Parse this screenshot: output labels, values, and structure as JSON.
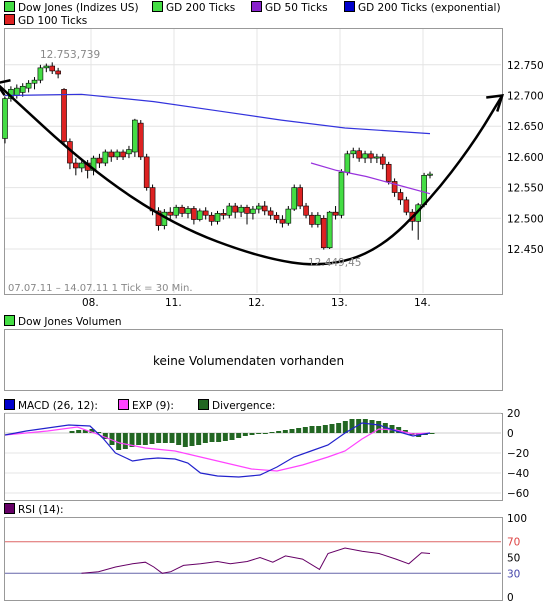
{
  "legend_top": [
    {
      "label": "Dow Jones (Indizes US)",
      "color": "#44dd44"
    },
    {
      "label": "GD 200 Ticks",
      "color": "#44dd44"
    },
    {
      "label": "GD 50 Ticks",
      "color": "#8822cc"
    },
    {
      "label": "GD 200 Ticks (exponential)",
      "color": "#0000cc"
    },
    {
      "label": "GD 100 Ticks",
      "color": "#dd2222"
    }
  ],
  "chart_data": [
    {
      "type": "candlestick",
      "ylim": [
        12400,
        12800
      ],
      "y_ticks": [
        "12.750",
        "12.700",
        "12.650",
        "12.600",
        "12.550",
        "12.500",
        "12.450"
      ],
      "x_ticks": [
        "08.",
        "11.",
        "12.",
        "13.",
        "14."
      ],
      "date_range": "07.07.11 – 14.07.11   1 Tick = 30 Min.",
      "max_label": "12.753,739",
      "min_label": "12.449,45",
      "candles": [
        [
          12630,
          12695,
          12622,
          12698
        ],
        [
          12695,
          12710,
          12690,
          12715
        ],
        [
          12700,
          12712,
          12695,
          12718
        ],
        [
          12705,
          12715,
          12698,
          12720
        ],
        [
          12712,
          12720,
          12705,
          12725
        ],
        [
          12720,
          12725,
          12710,
          12730
        ],
        [
          12725,
          12745,
          12720,
          12750
        ],
        [
          12745,
          12748,
          12738,
          12752
        ],
        [
          12748,
          12740,
          12735,
          12754
        ],
        [
          12740,
          12735,
          12728,
          12745
        ],
        [
          12710,
          12625,
          12620,
          12712
        ],
        [
          12625,
          12590,
          12580,
          12630
        ],
        [
          12590,
          12582,
          12570,
          12598
        ],
        [
          12582,
          12590,
          12575,
          12595
        ],
        [
          12590,
          12578,
          12565,
          12595
        ],
        [
          12578,
          12598,
          12570,
          12602
        ],
        [
          12598,
          12590,
          12582,
          12605
        ],
        [
          12590,
          12608,
          12585,
          12612
        ],
        [
          12608,
          12600,
          12592,
          12612
        ],
        [
          12600,
          12608,
          12595,
          12612
        ],
        [
          12608,
          12600,
          12595,
          12612
        ],
        [
          12605,
          12612,
          12598,
          12618
        ],
        [
          12608,
          12660,
          12600,
          12662
        ],
        [
          12655,
          12600,
          12595,
          12660
        ],
        [
          12600,
          12550,
          12545,
          12605
        ],
        [
          12550,
          12512,
          12505,
          12555
        ],
        [
          12512,
          12488,
          12480,
          12518
        ],
        [
          12488,
          12510,
          12482,
          12515
        ],
        [
          12510,
          12505,
          12498,
          12518
        ],
        [
          12505,
          12518,
          12500,
          12522
        ],
        [
          12518,
          12508,
          12502,
          12522
        ],
        [
          12508,
          12516,
          12500,
          12520
        ],
        [
          12516,
          12498,
          12490,
          12520
        ],
        [
          12498,
          12512,
          12495,
          12516
        ],
        [
          12512,
          12505,
          12498,
          12518
        ],
        [
          12505,
          12495,
          12488,
          12510
        ],
        [
          12495,
          12508,
          12490,
          12512
        ],
        [
          12508,
          12505,
          12498,
          12515
        ],
        [
          12505,
          12520,
          12500,
          12525
        ],
        [
          12520,
          12510,
          12500,
          12525
        ],
        [
          12510,
          12518,
          12502,
          12522
        ],
        [
          12518,
          12508,
          12490,
          12522
        ],
        [
          12508,
          12515,
          12498,
          12520
        ],
        [
          12515,
          12520,
          12508,
          12525
        ],
        [
          12520,
          12512,
          12505,
          12528
        ],
        [
          12512,
          12505,
          12498,
          12518
        ],
        [
          12505,
          12498,
          12492,
          12510
        ],
        [
          12498,
          12492,
          12485,
          12505
        ],
        [
          12492,
          12515,
          12488,
          12520
        ],
        [
          12515,
          12550,
          12512,
          12555
        ],
        [
          12550,
          12520,
          12515,
          12555
        ],
        [
          12520,
          12505,
          12500,
          12525
        ],
        [
          12505,
          12490,
          12485,
          12510
        ],
        [
          12490,
          12505,
          12485,
          12510
        ],
        [
          12500,
          12452,
          12449,
          12505
        ],
        [
          12452,
          12510,
          12450,
          12512
        ],
        [
          12510,
          12505,
          12498,
          12520
        ],
        [
          12505,
          12575,
          12500,
          12580
        ],
        [
          12575,
          12605,
          12570,
          12610
        ],
        [
          12605,
          12610,
          12598,
          12615
        ],
        [
          12610,
          12598,
          12592,
          12615
        ],
        [
          12598,
          12605,
          12590,
          12610
        ],
        [
          12605,
          12598,
          12590,
          12610
        ],
        [
          12598,
          12600,
          12590,
          12605
        ],
        [
          12600,
          12588,
          12580,
          12605
        ],
        [
          12588,
          12560,
          12555,
          12592
        ],
        [
          12560,
          12542,
          12535,
          12565
        ],
        [
          12542,
          12530,
          12522,
          12548
        ],
        [
          12530,
          12510,
          12505,
          12535
        ],
        [
          12510,
          12495,
          12480,
          12515
        ],
        [
          12495,
          12522,
          12465,
          12525
        ],
        [
          12522,
          12570,
          12518,
          12574
        ],
        [
          12570,
          12572,
          12565,
          12576
        ]
      ],
      "gd200_exp": [
        [
          0,
          12700
        ],
        [
          0.18,
          12702
        ],
        [
          0.35,
          12690
        ],
        [
          0.5,
          12675
        ],
        [
          0.65,
          12660
        ],
        [
          0.8,
          12647
        ],
        [
          1,
          12638
        ]
      ],
      "gd50": [
        [
          0.72,
          12590
        ],
        [
          0.78,
          12578
        ],
        [
          0.85,
          12568
        ],
        [
          0.92,
          12555
        ],
        [
          1,
          12540
        ]
      ],
      "trend_curve": [
        [
          -0.02,
          12720
        ],
        [
          0.2,
          12580
        ],
        [
          0.4,
          12488
        ],
        [
          0.6,
          12436
        ],
        [
          0.75,
          12420
        ],
        [
          0.88,
          12448
        ],
        [
          1,
          12530
        ],
        [
          1.1,
          12620
        ],
        [
          1.17,
          12700
        ]
      ]
    },
    {
      "type": "line",
      "title": "Dow Jones Volumen",
      "no_data_text": "keine Volumendaten vorhanden"
    },
    {
      "type": "line+bar",
      "legend": [
        {
          "label": "MACD (26, 12):",
          "color": "#0000cc"
        },
        {
          "label": "EXP (9):",
          "color": "#ff44ff"
        },
        {
          "label": "Divergence:",
          "color": "#226622"
        }
      ],
      "ylim": [
        -60,
        20
      ],
      "y_ticks": [
        "20",
        "0",
        "−20",
        "−40",
        "−60"
      ],
      "macd": [
        [
          0,
          -2
        ],
        [
          0.05,
          2
        ],
        [
          0.1,
          5
        ],
        [
          0.15,
          8
        ],
        [
          0.2,
          7
        ],
        [
          0.23,
          -5
        ],
        [
          0.26,
          -20
        ],
        [
          0.3,
          -28
        ],
        [
          0.33,
          -26
        ],
        [
          0.36,
          -25
        ],
        [
          0.4,
          -26
        ],
        [
          0.43,
          -30
        ],
        [
          0.46,
          -40
        ],
        [
          0.5,
          -43
        ],
        [
          0.55,
          -44
        ],
        [
          0.6,
          -42
        ],
        [
          0.64,
          -34
        ],
        [
          0.68,
          -24
        ],
        [
          0.72,
          -18
        ],
        [
          0.76,
          -12
        ],
        [
          0.8,
          0
        ],
        [
          0.84,
          10
        ],
        [
          0.88,
          8
        ],
        [
          0.92,
          2
        ],
        [
          0.96,
          -3
        ],
        [
          1,
          0
        ]
      ],
      "exp": [
        [
          0,
          -2
        ],
        [
          0.1,
          2
        ],
        [
          0.17,
          6
        ],
        [
          0.21,
          0
        ],
        [
          0.27,
          -10
        ],
        [
          0.33,
          -15
        ],
        [
          0.4,
          -18
        ],
        [
          0.46,
          -24
        ],
        [
          0.52,
          -30
        ],
        [
          0.58,
          -36
        ],
        [
          0.64,
          -38
        ],
        [
          0.7,
          -32
        ],
        [
          0.76,
          -24
        ],
        [
          0.8,
          -18
        ],
        [
          0.84,
          -6
        ],
        [
          0.88,
          4
        ],
        [
          0.92,
          3
        ],
        [
          0.96,
          -1
        ],
        [
          1,
          0
        ]
      ],
      "divergence": [
        2,
        3,
        3,
        4,
        1,
        -6,
        -12,
        -17,
        -16,
        -14,
        -12,
        -12,
        -11,
        -10,
        -10,
        -10,
        -12,
        -14,
        -13,
        -12,
        -10,
        -9,
        -9,
        -8,
        -7,
        -5,
        -3,
        -2,
        -1,
        0,
        1,
        2,
        3,
        4,
        5,
        6,
        7,
        7,
        8,
        9,
        10,
        12,
        14,
        14,
        14,
        13,
        12,
        10,
        8,
        6,
        3,
        -2,
        -4,
        -2,
        0
      ]
    },
    {
      "type": "line",
      "legend": [
        {
          "label": "RSI (14):",
          "color": "#660066"
        }
      ],
      "ylim": [
        0,
        100
      ],
      "y_ticks": [
        "100",
        "70",
        "50",
        "30",
        "0"
      ],
      "levels": [
        {
          "value": 70,
          "color": "#dd6666"
        },
        {
          "value": 30,
          "color": "#6666aa"
        }
      ],
      "rsi": [
        [
          0.18,
          30
        ],
        [
          0.22,
          32
        ],
        [
          0.26,
          38
        ],
        [
          0.3,
          42
        ],
        [
          0.33,
          44
        ],
        [
          0.35,
          38
        ],
        [
          0.37,
          30
        ],
        [
          0.39,
          32
        ],
        [
          0.42,
          40
        ],
        [
          0.46,
          42
        ],
        [
          0.5,
          45
        ],
        [
          0.53,
          42
        ],
        [
          0.57,
          45
        ],
        [
          0.6,
          50
        ],
        [
          0.63,
          44
        ],
        [
          0.66,
          52
        ],
        [
          0.7,
          48
        ],
        [
          0.74,
          35
        ],
        [
          0.76,
          55
        ],
        [
          0.8,
          62
        ],
        [
          0.84,
          58
        ],
        [
          0.88,
          55
        ],
        [
          0.92,
          48
        ],
        [
          0.95,
          42
        ],
        [
          0.98,
          56
        ],
        [
          1,
          55
        ]
      ]
    }
  ]
}
